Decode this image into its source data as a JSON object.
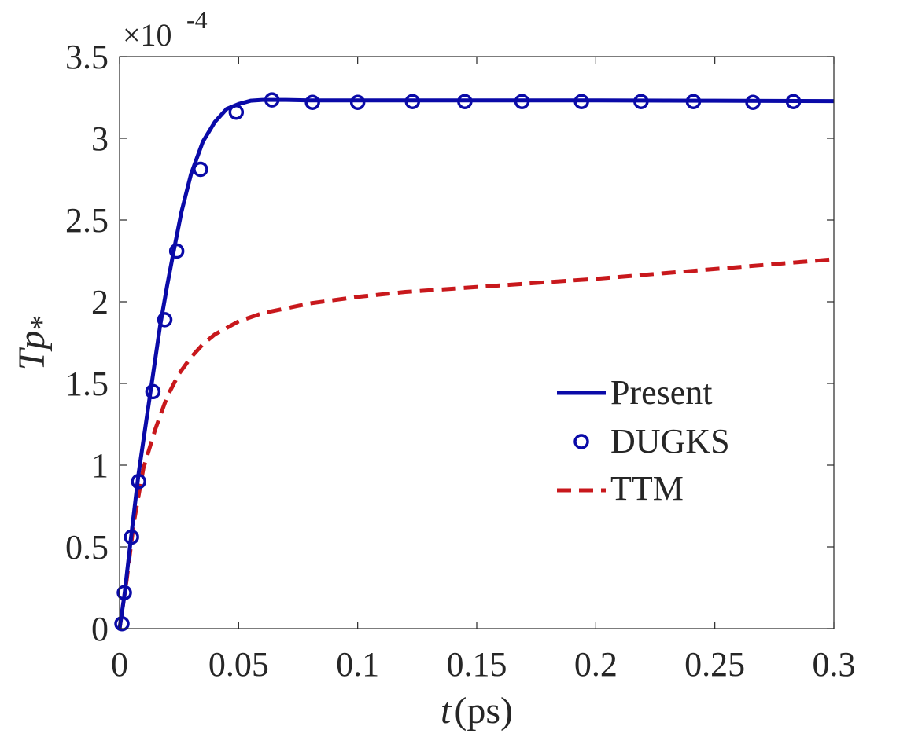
{
  "chart_data": {
    "type": "line",
    "xlabel_var": "t",
    "xlabel_unit": "(ps)",
    "ylabel_var": "Tp",
    "ylabel_sub": "*",
    "y_multiplier_base": "×10",
    "y_multiplier_exp": "-4",
    "xlim": [
      0,
      0.3
    ],
    "ylim": [
      0,
      3.5
    ],
    "xticks": [
      0,
      0.05,
      0.1,
      0.15,
      0.2,
      0.25,
      0.3
    ],
    "xtick_labels": [
      "0",
      "0.05",
      "0.1",
      "0.15",
      "0.2",
      "0.25",
      "0.3"
    ],
    "yticks": [
      0,
      0.5,
      1,
      1.5,
      2,
      2.5,
      3,
      3.5
    ],
    "ytick_labels": [
      "0",
      "0.5",
      "1",
      "1.5",
      "2",
      "2.5",
      "3",
      "3.5"
    ],
    "legend_position": "center-right",
    "series": [
      {
        "name": "Present",
        "style": "solid-line",
        "color": "#0a0aa8",
        "x": [
          0,
          0.002,
          0.005,
          0.008,
          0.011,
          0.014,
          0.017,
          0.02,
          0.023,
          0.026,
          0.03,
          0.035,
          0.04,
          0.045,
          0.05,
          0.055,
          0.06,
          0.065,
          0.07,
          0.08,
          0.1,
          0.15,
          0.2,
          0.25,
          0.3
        ],
        "y": [
          0,
          0.2,
          0.58,
          0.95,
          1.25,
          1.55,
          1.85,
          2.1,
          2.33,
          2.55,
          2.78,
          2.98,
          3.1,
          3.18,
          3.21,
          3.23,
          3.235,
          3.235,
          3.235,
          3.232,
          3.232,
          3.232,
          3.232,
          3.23,
          3.228
        ]
      },
      {
        "name": "DUGKS",
        "style": "circle-markers",
        "color": "#0a0aa8",
        "x": [
          0.001,
          0.002,
          0.005,
          0.008,
          0.014,
          0.019,
          0.024,
          0.034,
          0.049,
          0.064,
          0.081,
          0.1,
          0.123,
          0.145,
          0.169,
          0.194,
          0.219,
          0.241,
          0.266,
          0.283
        ],
        "y": [
          0.03,
          0.22,
          0.56,
          0.9,
          1.45,
          1.89,
          2.31,
          2.81,
          3.16,
          3.235,
          3.22,
          3.22,
          3.225,
          3.225,
          3.225,
          3.225,
          3.225,
          3.225,
          3.22,
          3.225
        ]
      },
      {
        "name": "TTM",
        "style": "dashed-line",
        "color": "#c8181c",
        "x": [
          0,
          0.003,
          0.006,
          0.01,
          0.015,
          0.02,
          0.025,
          0.03,
          0.035,
          0.04,
          0.05,
          0.06,
          0.07,
          0.08,
          0.1,
          0.12,
          0.15,
          0.2,
          0.25,
          0.3
        ],
        "y": [
          0,
          0.3,
          0.65,
          0.98,
          1.22,
          1.42,
          1.56,
          1.66,
          1.74,
          1.8,
          1.88,
          1.93,
          1.96,
          1.99,
          2.03,
          2.06,
          2.09,
          2.14,
          2.2,
          2.26
        ]
      }
    ]
  }
}
